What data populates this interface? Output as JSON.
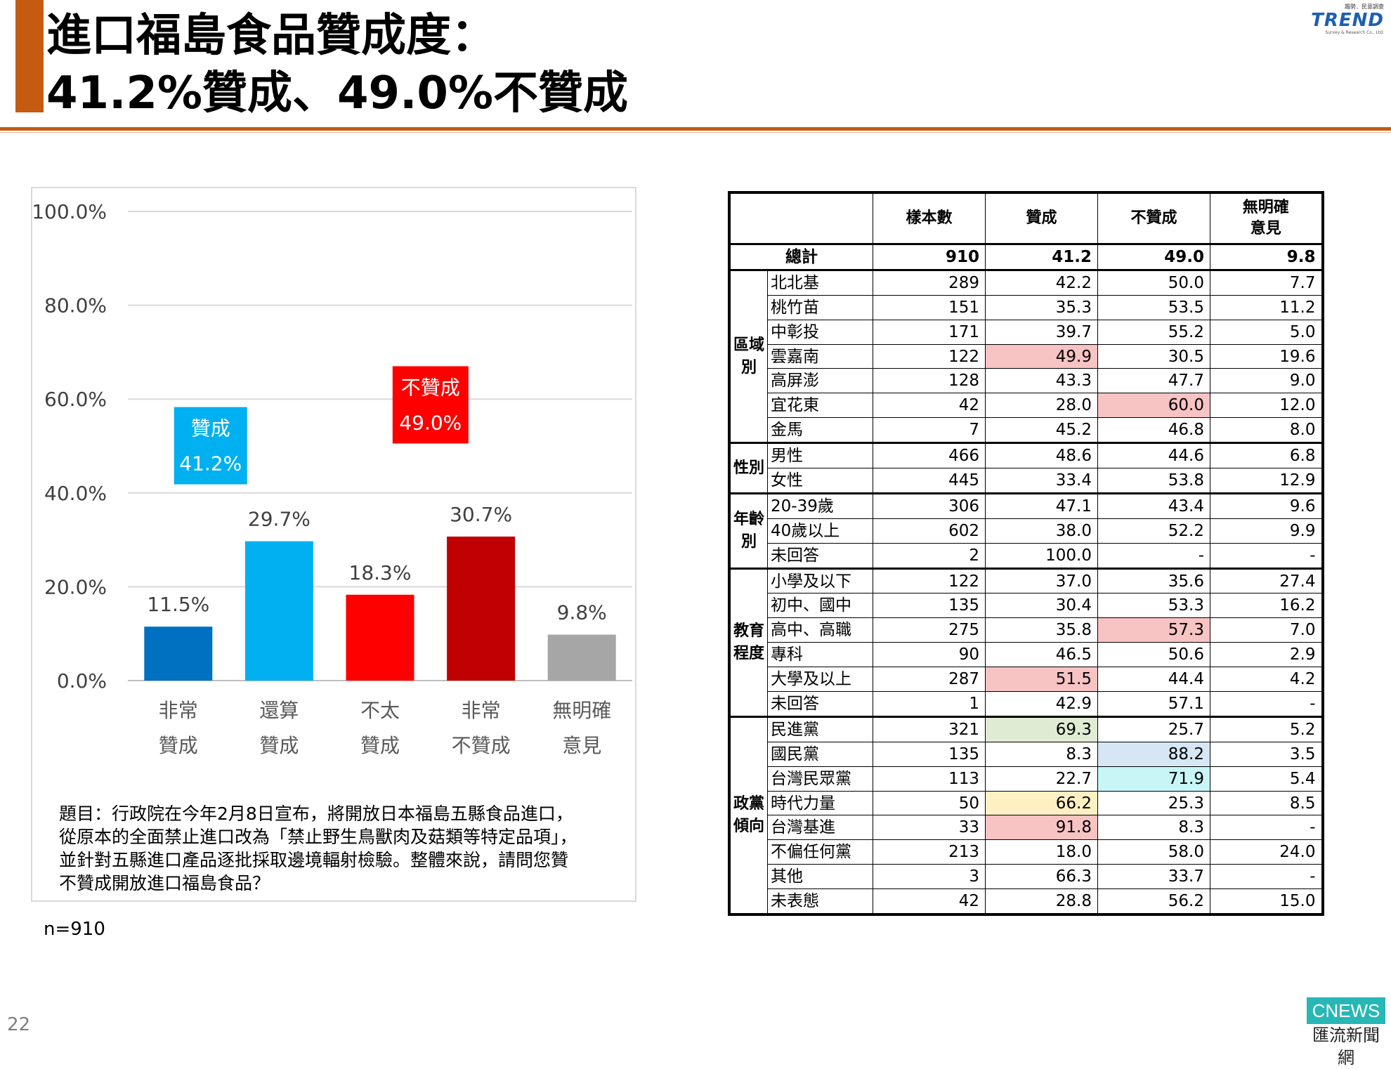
{
  "title": {
    "line1": "進口福島食品贊成度：",
    "line2": "41.2%贊成、49.0%不贊成"
  },
  "logo": {
    "tagline": "趨勢．民意調查",
    "name": "TREND",
    "company": "Survey & Research Co., Ltd."
  },
  "colors": {
    "accent": "#c55a11",
    "very_agree": "#0070c0",
    "somewhat_agree": "#00b0f0",
    "somewhat_disagree": "#ff0000",
    "very_disagree": "#c00000",
    "no_opinion": "#a6a6a6",
    "highlight_red": "#f8c3c3"
  },
  "chart_data": {
    "type": "bar",
    "categories": [
      "非常\n贊成",
      "還算\n贊成",
      "不太\n贊成",
      "非常\n不贊成",
      "無明確\n意見"
    ],
    "category_lines": [
      [
        "非常",
        "贊成"
      ],
      [
        "還算",
        "贊成"
      ],
      [
        "不太",
        "贊成"
      ],
      [
        "非常",
        "不贊成"
      ],
      [
        "無明確",
        "意見"
      ]
    ],
    "values": [
      11.5,
      29.7,
      18.3,
      30.7,
      9.8
    ],
    "value_labels": [
      "11.5%",
      "29.7%",
      "18.3%",
      "30.7%",
      "9.8%"
    ],
    "bar_colors": [
      "#0070c0",
      "#00b0f0",
      "#ff0000",
      "#c00000",
      "#a6a6a6"
    ],
    "yticks": [
      "0.0%",
      "20.0%",
      "40.0%",
      "60.0%",
      "80.0%",
      "100.0%"
    ],
    "ylim": [
      0,
      100
    ],
    "grid": true,
    "annotations": [
      {
        "text": "贊成",
        "value": "41.2%",
        "color": "#00b0f0"
      },
      {
        "text": "不贊成",
        "value": "49.0%",
        "color": "#ff0000"
      }
    ]
  },
  "question": {
    "lines": [
      "題目：行政院在今年2月8日宣布，將開放日本福島五縣食品進口，",
      "從原本的全面禁止進口改為「禁止野生鳥獸肉及菇類等特定品項」，",
      "並針對五縣進口產品逐批採取邊境輻射檢驗。整體來說，請問您贊",
      "不贊成開放進口福島食品？"
    ]
  },
  "sample": "n=910",
  "page_number": "22",
  "watermark": {
    "top": "CNEWS",
    "bottom": "匯流新聞網"
  },
  "table": {
    "headers": [
      "樣本數",
      "贊成",
      "不贊成",
      "無明確\n意見"
    ],
    "total": {
      "label": "總計",
      "values": [
        "910",
        "41.2",
        "49.0",
        "9.8"
      ]
    },
    "groups": [
      {
        "name": "區域\n別",
        "rows": [
          {
            "label": "北北基",
            "values": [
              "289",
              "42.2",
              "50.0",
              "7.7"
            ]
          },
          {
            "label": "桃竹苗",
            "values": [
              "151",
              "35.3",
              "53.5",
              "11.2"
            ]
          },
          {
            "label": "中彰投",
            "values": [
              "171",
              "39.7",
              "55.2",
              "5.0"
            ]
          },
          {
            "label": "雲嘉南",
            "values": [
              "122",
              "49.9",
              "30.5",
              "19.6"
            ],
            "hl": [
              null,
              "red",
              null,
              null
            ]
          },
          {
            "label": "高屏澎",
            "values": [
              "128",
              "43.3",
              "47.7",
              "9.0"
            ]
          },
          {
            "label": "宜花東",
            "values": [
              "42",
              "28.0",
              "60.0",
              "12.0"
            ],
            "hl": [
              null,
              null,
              "red",
              null
            ]
          },
          {
            "label": "金馬",
            "values": [
              "7",
              "45.2",
              "46.8",
              "8.0"
            ]
          }
        ]
      },
      {
        "name": "性別",
        "rows": [
          {
            "label": "男性",
            "values": [
              "466",
              "48.6",
              "44.6",
              "6.8"
            ]
          },
          {
            "label": "女性",
            "values": [
              "445",
              "33.4",
              "53.8",
              "12.9"
            ]
          }
        ]
      },
      {
        "name": "年齡\n別",
        "rows": [
          {
            "label": "20-39歲",
            "values": [
              "306",
              "47.1",
              "43.4",
              "9.6"
            ]
          },
          {
            "label": "40歲以上",
            "values": [
              "602",
              "38.0",
              "52.2",
              "9.9"
            ]
          },
          {
            "label": "未回答",
            "values": [
              "2",
              "100.0",
              "-",
              "-"
            ]
          }
        ]
      },
      {
        "name": "教育\n程度",
        "rows": [
          {
            "label": "小學及以下",
            "values": [
              "122",
              "37.0",
              "35.6",
              "27.4"
            ]
          },
          {
            "label": "初中、國中",
            "values": [
              "135",
              "30.4",
              "53.3",
              "16.2"
            ]
          },
          {
            "label": "高中、高職",
            "values": [
              "275",
              "35.8",
              "57.3",
              "7.0"
            ],
            "hl": [
              null,
              null,
              "red",
              null
            ]
          },
          {
            "label": "專科",
            "values": [
              "90",
              "46.5",
              "50.6",
              "2.9"
            ]
          },
          {
            "label": "大學及以上",
            "values": [
              "287",
              "51.5",
              "44.4",
              "4.2"
            ],
            "hl": [
              null,
              "red",
              null,
              null
            ]
          },
          {
            "label": "未回答",
            "values": [
              "1",
              "42.9",
              "57.1",
              "-"
            ]
          }
        ]
      },
      {
        "name": "政黨\n傾向",
        "rows": [
          {
            "label": "民進黨",
            "values": [
              "321",
              "69.3",
              "25.7",
              "5.2"
            ],
            "hl": [
              null,
              "green",
              null,
              null
            ]
          },
          {
            "label": "國民黨",
            "values": [
              "135",
              "8.3",
              "88.2",
              "3.5"
            ],
            "hl": [
              null,
              null,
              "blue",
              null
            ]
          },
          {
            "label": "台灣民眾黨",
            "values": [
              "113",
              "22.7",
              "71.9",
              "5.4"
            ],
            "hl": [
              null,
              null,
              "cyan",
              null
            ]
          },
          {
            "label": "時代力量",
            "values": [
              "50",
              "66.2",
              "25.3",
              "8.5"
            ],
            "hl": [
              null,
              "yellow",
              null,
              null
            ]
          },
          {
            "label": "台灣基進",
            "values": [
              "33",
              "91.8",
              "8.3",
              "-"
            ],
            "hl": [
              null,
              "red",
              null,
              null
            ]
          },
          {
            "label": "不偏任何黨",
            "values": [
              "213",
              "18.0",
              "58.0",
              "24.0"
            ]
          },
          {
            "label": "其他",
            "values": [
              "3",
              "66.3",
              "33.7",
              "-"
            ]
          },
          {
            "label": "未表態",
            "values": [
              "42",
              "28.8",
              "56.2",
              "15.0"
            ]
          }
        ]
      }
    ]
  }
}
